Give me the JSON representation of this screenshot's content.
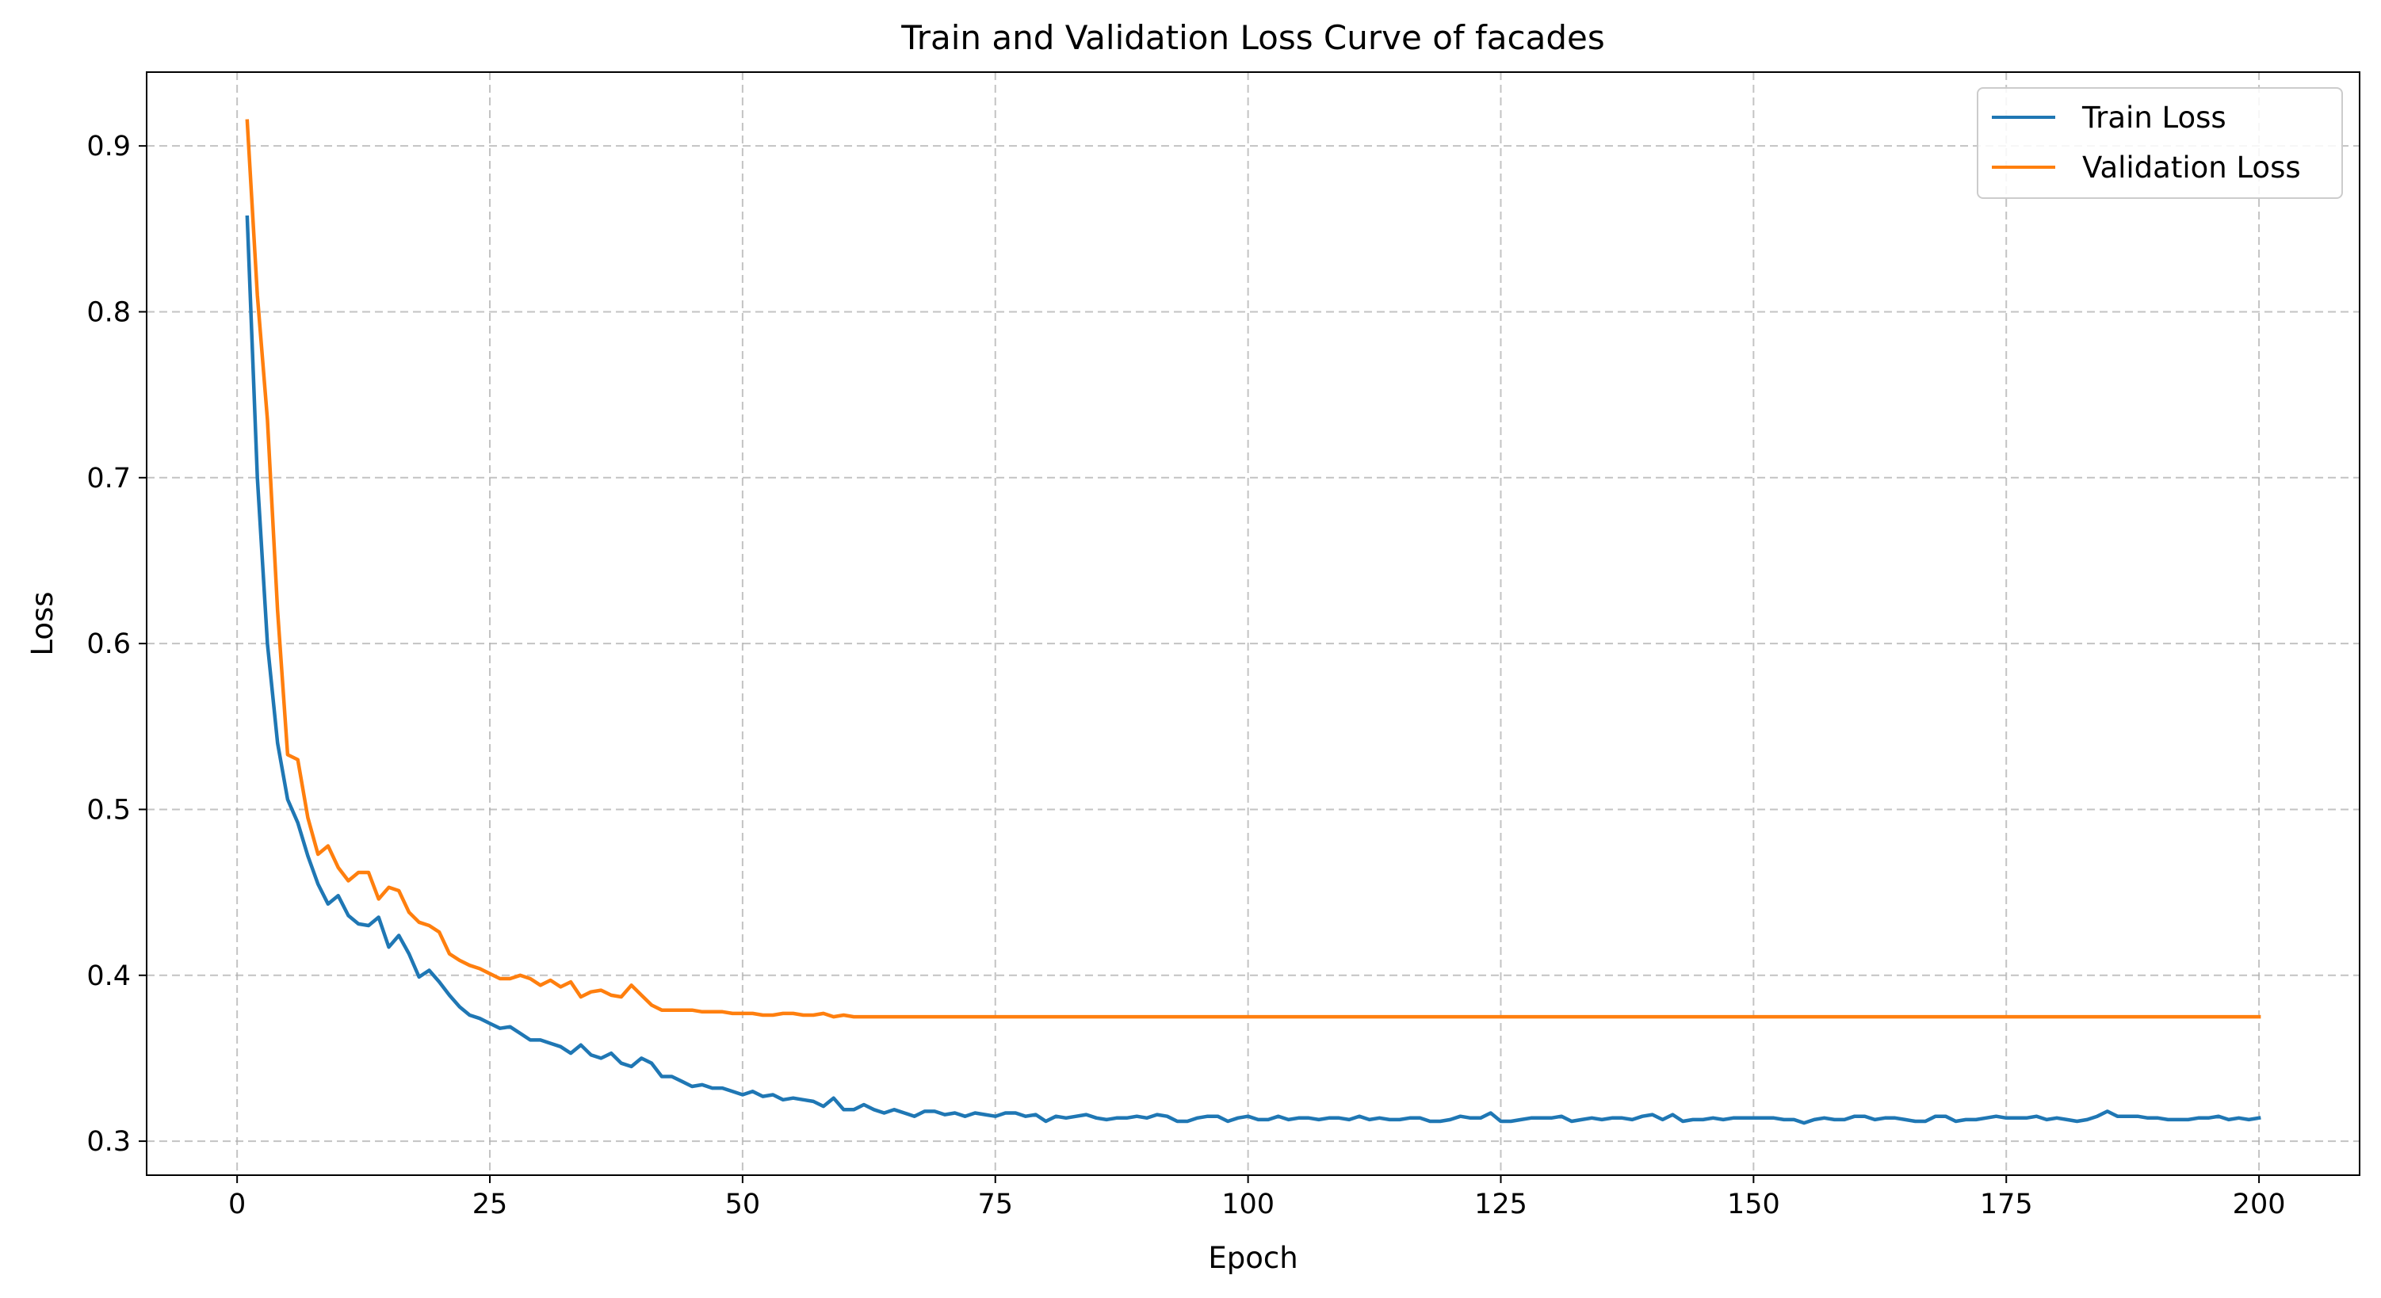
{
  "chart_data": {
    "type": "line",
    "title": "Train and Validation Loss Curve of facades",
    "xlabel": "Epoch",
    "ylabel": "Loss",
    "xlim": [
      -8.95,
      209.95
    ],
    "ylim": [
      0.2795,
      0.9445
    ],
    "xticks": [
      0,
      25,
      50,
      75,
      100,
      125,
      150,
      175,
      200
    ],
    "yticks": [
      0.3,
      0.4,
      0.5,
      0.6,
      0.7,
      0.8,
      0.9
    ],
    "xtick_labels": [
      "0",
      "25",
      "50",
      "75",
      "100",
      "125",
      "150",
      "175",
      "200"
    ],
    "ytick_labels": [
      "0.3",
      "0.4",
      "0.5",
      "0.6",
      "0.7",
      "0.8",
      "0.9"
    ],
    "grid": true,
    "legend_position": "top-right",
    "series": [
      {
        "name": "Train Loss",
        "color": "#1f77b4",
        "points": [
          [
            1,
            0.857
          ],
          [
            2,
            0.7
          ],
          [
            3,
            0.6
          ],
          [
            4,
            0.54
          ],
          [
            5,
            0.506
          ],
          [
            6,
            0.492
          ],
          [
            7,
            0.472
          ],
          [
            8,
            0.455
          ],
          [
            9,
            0.443
          ],
          [
            10,
            0.448
          ],
          [
            11,
            0.436
          ],
          [
            12,
            0.431
          ],
          [
            13,
            0.43
          ],
          [
            14,
            0.435
          ],
          [
            15,
            0.417
          ],
          [
            16,
            0.424
          ],
          [
            17,
            0.413
          ],
          [
            18,
            0.399
          ],
          [
            19,
            0.403
          ],
          [
            20,
            0.396
          ],
          [
            21,
            0.388
          ],
          [
            22,
            0.381
          ],
          [
            23,
            0.376
          ],
          [
            24,
            0.374
          ],
          [
            25,
            0.371
          ],
          [
            26,
            0.368
          ],
          [
            27,
            0.369
          ],
          [
            28,
            0.365
          ],
          [
            29,
            0.361
          ],
          [
            30,
            0.361
          ],
          [
            31,
            0.359
          ],
          [
            32,
            0.357
          ],
          [
            33,
            0.353
          ],
          [
            34,
            0.358
          ],
          [
            35,
            0.352
          ],
          [
            36,
            0.35
          ],
          [
            37,
            0.353
          ],
          [
            38,
            0.347
          ],
          [
            39,
            0.345
          ],
          [
            40,
            0.35
          ],
          [
            41,
            0.347
          ],
          [
            42,
            0.339
          ],
          [
            43,
            0.339
          ],
          [
            44,
            0.336
          ],
          [
            45,
            0.333
          ],
          [
            46,
            0.334
          ],
          [
            47,
            0.332
          ],
          [
            48,
            0.332
          ],
          [
            49,
            0.33
          ],
          [
            50,
            0.328
          ],
          [
            51,
            0.33
          ],
          [
            52,
            0.327
          ],
          [
            53,
            0.328
          ],
          [
            54,
            0.325
          ],
          [
            55,
            0.326
          ],
          [
            56,
            0.325
          ],
          [
            57,
            0.324
          ],
          [
            58,
            0.321
          ],
          [
            59,
            0.326
          ],
          [
            60,
            0.319
          ],
          [
            61,
            0.319
          ],
          [
            62,
            0.322
          ],
          [
            63,
            0.319
          ],
          [
            64,
            0.317
          ],
          [
            65,
            0.319
          ],
          [
            66,
            0.317
          ],
          [
            67,
            0.315
          ],
          [
            68,
            0.318
          ],
          [
            69,
            0.318
          ],
          [
            70,
            0.316
          ],
          [
            71,
            0.317
          ],
          [
            72,
            0.315
          ],
          [
            73,
            0.317
          ],
          [
            74,
            0.316
          ],
          [
            75,
            0.315
          ],
          [
            76,
            0.317
          ],
          [
            77,
            0.317
          ],
          [
            78,
            0.315
          ],
          [
            79,
            0.316
          ],
          [
            80,
            0.312
          ],
          [
            81,
            0.315
          ],
          [
            82,
            0.314
          ],
          [
            83,
            0.315
          ],
          [
            84,
            0.316
          ],
          [
            85,
            0.314
          ],
          [
            86,
            0.313
          ],
          [
            87,
            0.314
          ],
          [
            88,
            0.314
          ],
          [
            89,
            0.315
          ],
          [
            90,
            0.314
          ],
          [
            91,
            0.316
          ],
          [
            92,
            0.315
          ],
          [
            93,
            0.312
          ],
          [
            94,
            0.312
          ],
          [
            95,
            0.314
          ],
          [
            96,
            0.315
          ],
          [
            97,
            0.315
          ],
          [
            98,
            0.312
          ],
          [
            99,
            0.314
          ],
          [
            100,
            0.315
          ],
          [
            101,
            0.313
          ],
          [
            102,
            0.313
          ],
          [
            103,
            0.315
          ],
          [
            104,
            0.313
          ],
          [
            105,
            0.314
          ],
          [
            106,
            0.314
          ],
          [
            107,
            0.313
          ],
          [
            108,
            0.314
          ],
          [
            109,
            0.314
          ],
          [
            110,
            0.313
          ],
          [
            111,
            0.315
          ],
          [
            112,
            0.313
          ],
          [
            113,
            0.314
          ],
          [
            114,
            0.313
          ],
          [
            115,
            0.313
          ],
          [
            116,
            0.314
          ],
          [
            117,
            0.314
          ],
          [
            118,
            0.312
          ],
          [
            119,
            0.312
          ],
          [
            120,
            0.313
          ],
          [
            121,
            0.315
          ],
          [
            122,
            0.314
          ],
          [
            123,
            0.314
          ],
          [
            124,
            0.317
          ],
          [
            125,
            0.312
          ],
          [
            126,
            0.312
          ],
          [
            127,
            0.313
          ],
          [
            128,
            0.314
          ],
          [
            129,
            0.314
          ],
          [
            130,
            0.314
          ],
          [
            131,
            0.315
          ],
          [
            132,
            0.312
          ],
          [
            133,
            0.313
          ],
          [
            134,
            0.314
          ],
          [
            135,
            0.313
          ],
          [
            136,
            0.314
          ],
          [
            137,
            0.314
          ],
          [
            138,
            0.313
          ],
          [
            139,
            0.315
          ],
          [
            140,
            0.316
          ],
          [
            141,
            0.313
          ],
          [
            142,
            0.316
          ],
          [
            143,
            0.312
          ],
          [
            144,
            0.313
          ],
          [
            145,
            0.313
          ],
          [
            146,
            0.314
          ],
          [
            147,
            0.313
          ],
          [
            148,
            0.314
          ],
          [
            149,
            0.314
          ],
          [
            150,
            0.314
          ],
          [
            151,
            0.314
          ],
          [
            152,
            0.314
          ],
          [
            153,
            0.313
          ],
          [
            154,
            0.313
          ],
          [
            155,
            0.311
          ],
          [
            156,
            0.313
          ],
          [
            157,
            0.314
          ],
          [
            158,
            0.313
          ],
          [
            159,
            0.313
          ],
          [
            160,
            0.315
          ],
          [
            161,
            0.315
          ],
          [
            162,
            0.313
          ],
          [
            163,
            0.314
          ],
          [
            164,
            0.314
          ],
          [
            165,
            0.313
          ],
          [
            166,
            0.312
          ],
          [
            167,
            0.312
          ],
          [
            168,
            0.315
          ],
          [
            169,
            0.315
          ],
          [
            170,
            0.312
          ],
          [
            171,
            0.313
          ],
          [
            172,
            0.313
          ],
          [
            173,
            0.314
          ],
          [
            174,
            0.315
          ],
          [
            175,
            0.314
          ],
          [
            176,
            0.314
          ],
          [
            177,
            0.314
          ],
          [
            178,
            0.315
          ],
          [
            179,
            0.313
          ],
          [
            180,
            0.314
          ],
          [
            181,
            0.313
          ],
          [
            182,
            0.312
          ],
          [
            183,
            0.313
          ],
          [
            184,
            0.315
          ],
          [
            185,
            0.318
          ],
          [
            186,
            0.315
          ],
          [
            187,
            0.315
          ],
          [
            188,
            0.315
          ],
          [
            189,
            0.314
          ],
          [
            190,
            0.314
          ],
          [
            191,
            0.313
          ],
          [
            192,
            0.313
          ],
          [
            193,
            0.313
          ],
          [
            194,
            0.314
          ],
          [
            195,
            0.314
          ],
          [
            196,
            0.315
          ],
          [
            197,
            0.313
          ],
          [
            198,
            0.314
          ],
          [
            199,
            0.313
          ],
          [
            200,
            0.314
          ]
        ]
      },
      {
        "name": "Validation Loss",
        "color": "#ff7f0e",
        "points": [
          [
            1,
            0.915
          ],
          [
            2,
            0.81
          ],
          [
            3,
            0.735
          ],
          [
            4,
            0.62
          ],
          [
            5,
            0.533
          ],
          [
            6,
            0.53
          ],
          [
            7,
            0.495
          ],
          [
            8,
            0.473
          ],
          [
            9,
            0.478
          ],
          [
            10,
            0.465
          ],
          [
            11,
            0.457
          ],
          [
            12,
            0.462
          ],
          [
            13,
            0.462
          ],
          [
            14,
            0.446
          ],
          [
            15,
            0.453
          ],
          [
            16,
            0.451
          ],
          [
            17,
            0.438
          ],
          [
            18,
            0.432
          ],
          [
            19,
            0.43
          ],
          [
            20,
            0.426
          ],
          [
            21,
            0.413
          ],
          [
            22,
            0.409
          ],
          [
            23,
            0.406
          ],
          [
            24,
            0.404
          ],
          [
            25,
            0.401
          ],
          [
            26,
            0.398
          ],
          [
            27,
            0.398
          ],
          [
            28,
            0.4
          ],
          [
            29,
            0.398
          ],
          [
            30,
            0.394
          ],
          [
            31,
            0.397
          ],
          [
            32,
            0.393
          ],
          [
            33,
            0.396
          ],
          [
            34,
            0.387
          ],
          [
            35,
            0.39
          ],
          [
            36,
            0.391
          ],
          [
            37,
            0.388
          ],
          [
            38,
            0.387
          ],
          [
            39,
            0.394
          ],
          [
            40,
            0.388
          ],
          [
            41,
            0.382
          ],
          [
            42,
            0.379
          ],
          [
            43,
            0.379
          ],
          [
            44,
            0.379
          ],
          [
            45,
            0.379
          ],
          [
            46,
            0.378
          ],
          [
            47,
            0.378
          ],
          [
            48,
            0.378
          ],
          [
            49,
            0.377
          ],
          [
            50,
            0.377
          ],
          [
            51,
            0.377
          ],
          [
            52,
            0.376
          ],
          [
            53,
            0.376
          ],
          [
            54,
            0.377
          ],
          [
            55,
            0.377
          ],
          [
            56,
            0.376
          ],
          [
            57,
            0.376
          ],
          [
            58,
            0.377
          ],
          [
            59,
            0.375
          ],
          [
            60,
            0.376
          ],
          [
            61,
            0.375
          ],
          [
            62,
            0.375
          ],
          [
            63,
            0.375
          ],
          [
            64,
            0.375
          ],
          [
            65,
            0.375
          ],
          [
            66,
            0.375
          ],
          [
            67,
            0.375
          ],
          [
            68,
            0.375
          ],
          [
            69,
            0.375
          ],
          [
            70,
            0.375
          ],
          [
            75,
            0.375
          ],
          [
            80,
            0.375
          ],
          [
            85,
            0.375
          ],
          [
            90,
            0.375
          ],
          [
            95,
            0.375
          ],
          [
            100,
            0.375
          ],
          [
            110,
            0.375
          ],
          [
            120,
            0.375
          ],
          [
            130,
            0.375
          ],
          [
            140,
            0.375
          ],
          [
            150,
            0.375
          ],
          [
            160,
            0.375
          ],
          [
            170,
            0.375
          ],
          [
            180,
            0.375
          ],
          [
            190,
            0.375
          ],
          [
            200,
            0.375
          ]
        ]
      }
    ]
  }
}
